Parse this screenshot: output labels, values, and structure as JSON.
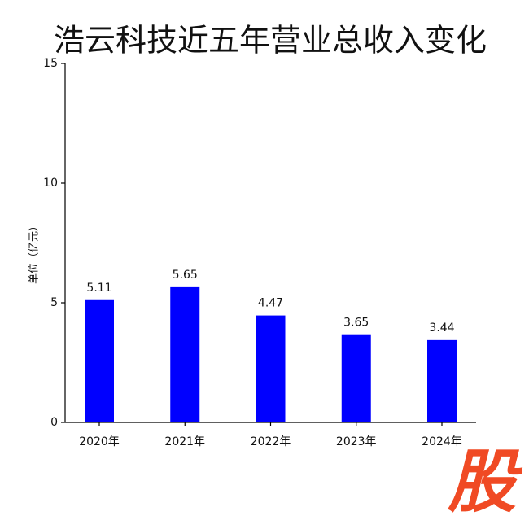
{
  "chart_data": {
    "type": "bar",
    "title": "浩云科技近五年营业总收入变化",
    "y_label": "单位（亿元）",
    "categories": [
      "2020年",
      "2021年",
      "2022年",
      "2023年",
      "2024年"
    ],
    "values": [
      5.11,
      5.65,
      4.47,
      3.65,
      3.44
    ],
    "color": "#0000ff",
    "ylim": [
      0,
      15
    ],
    "yticks": [
      0,
      5,
      10,
      15
    ],
    "grid": false
  },
  "watermark": "股"
}
